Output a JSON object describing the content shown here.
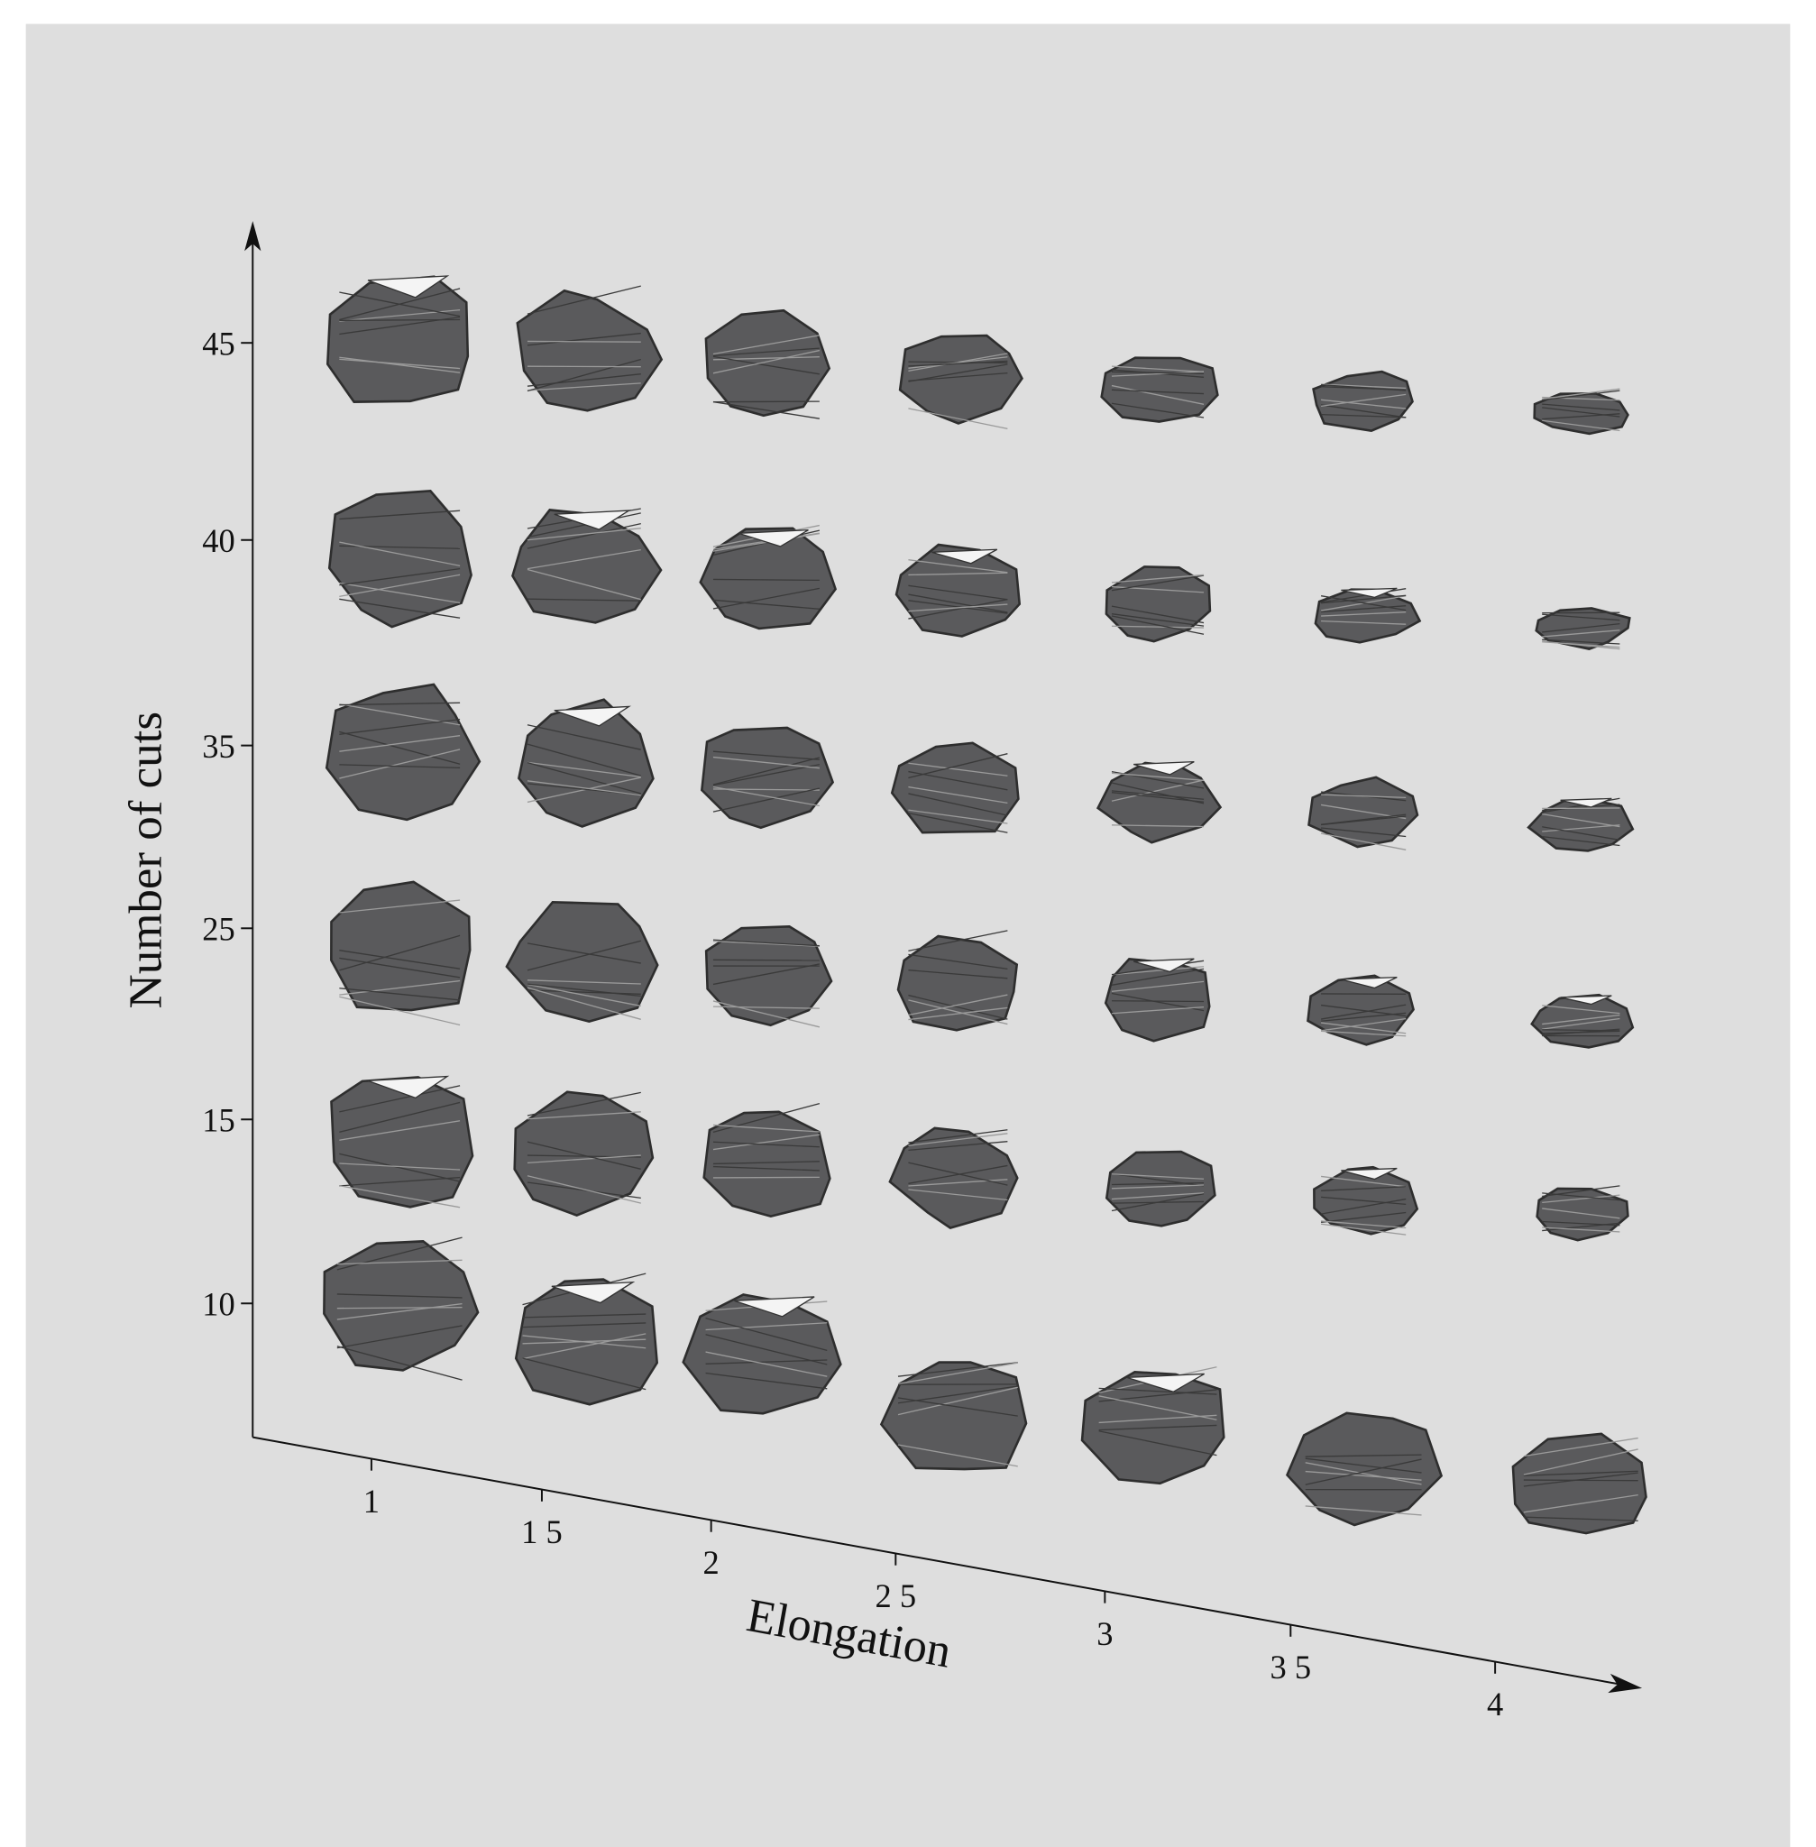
{
  "x_axis": {
    "label": "Elongation",
    "ticks": [
      "1",
      "1 5",
      "2",
      "2 5",
      "3",
      "3 5",
      "4"
    ]
  },
  "y_axis": {
    "label": "Number of cuts",
    "ticks": [
      "10",
      "15",
      "25",
      "35",
      "40",
      "45"
    ]
  }
}
